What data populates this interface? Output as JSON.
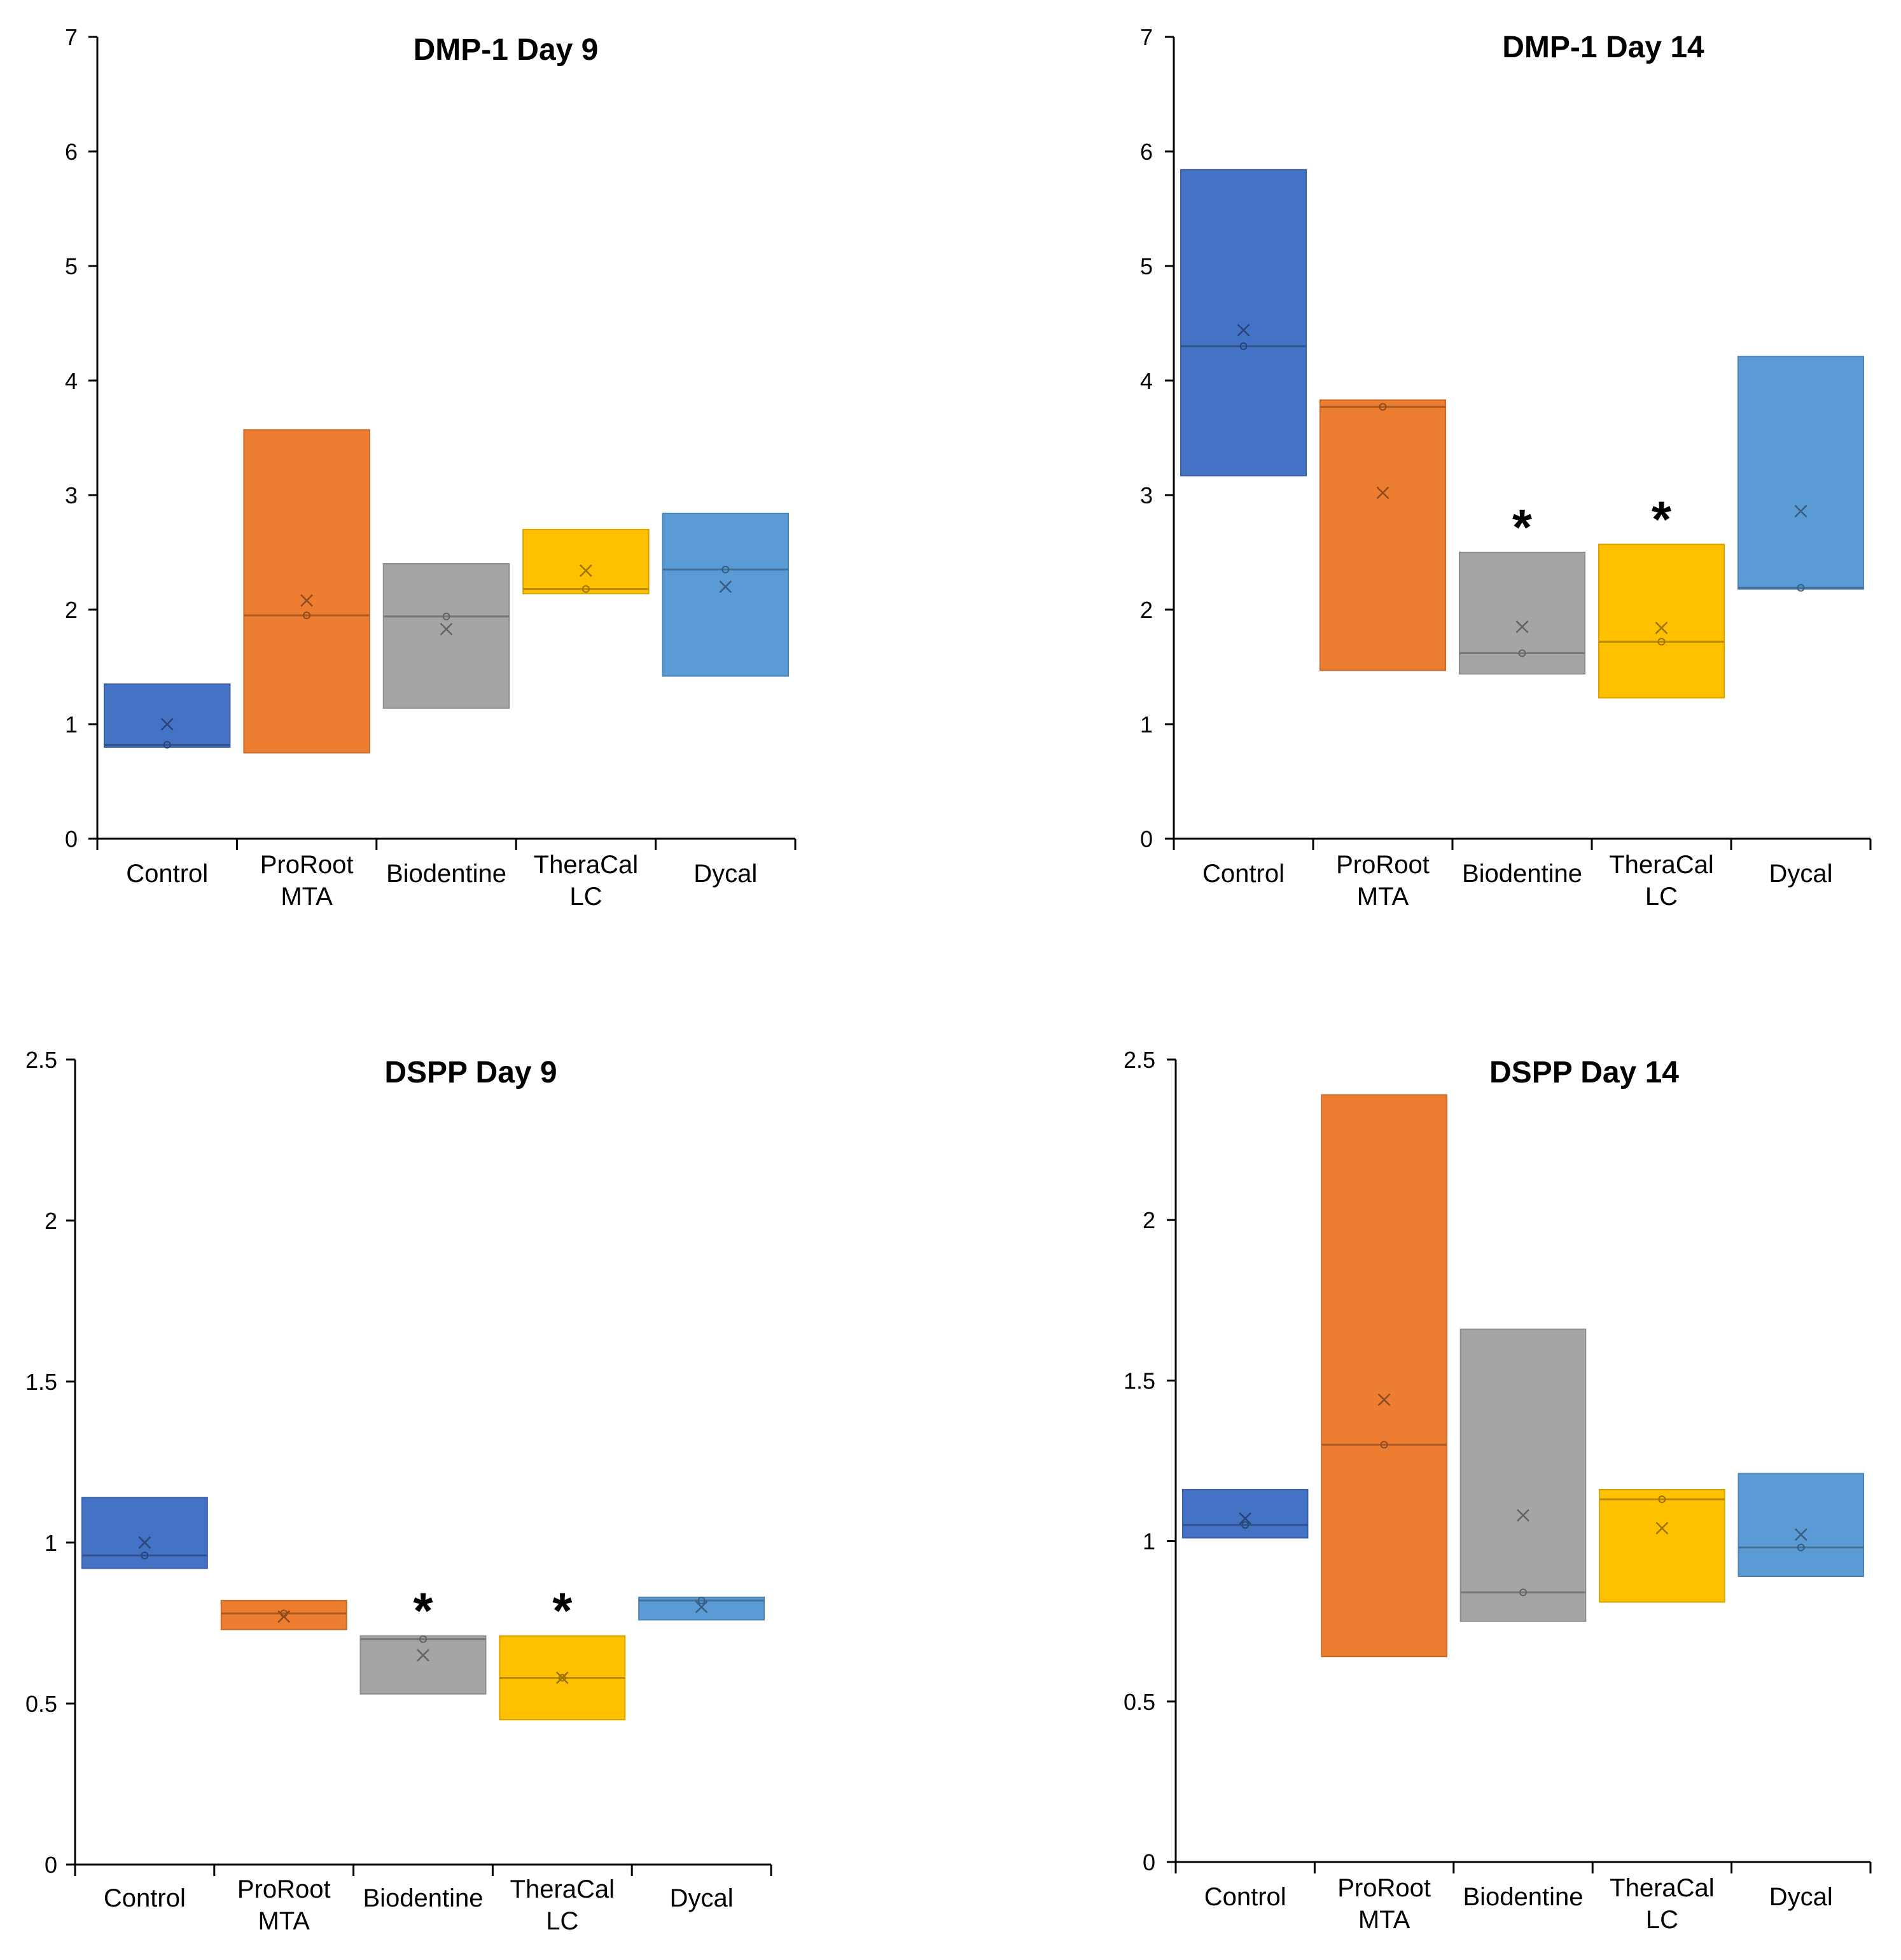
{
  "figure": {
    "colors": {
      "Control": "#4472C4",
      "ProRoot MTA": "#ED7D31",
      "Biodentine": "#A5A5A5",
      "TheraCal LC": "#FFC000",
      "Dycal": "#5B9BD5"
    }
  },
  "chart_data": [
    {
      "type": "boxplot",
      "title": "DMP-1 Day 9",
      "xlabel": "",
      "ylabel": "",
      "ylim": [
        0,
        7
      ],
      "yticks": [
        "0",
        "1",
        "2",
        "3",
        "4",
        "5",
        "6",
        "7"
      ],
      "categories": [
        {
          "name": "Control",
          "lines": [
            "Control"
          ],
          "q1": 0.8,
          "median": 0.82,
          "q3": 1.35,
          "mean": 1.0,
          "sig": ""
        },
        {
          "name": "ProRoot MTA",
          "lines": [
            "ProRoot",
            "MTA"
          ],
          "q1": 0.75,
          "median": 1.95,
          "q3": 3.57,
          "mean": 2.08,
          "sig": ""
        },
        {
          "name": "Biodentine",
          "lines": [
            "Biodentine"
          ],
          "q1": 1.14,
          "median": 1.94,
          "q3": 2.4,
          "mean": 1.83,
          "sig": ""
        },
        {
          "name": "TheraCal LC",
          "lines": [
            "TheraCal",
            "LC"
          ],
          "q1": 2.14,
          "median": 2.18,
          "q3": 2.7,
          "mean": 2.34,
          "sig": ""
        },
        {
          "name": "Dycal",
          "lines": [
            "Dycal"
          ],
          "q1": 1.42,
          "median": 2.35,
          "q3": 2.84,
          "mean": 2.2,
          "sig": ""
        }
      ]
    },
    {
      "type": "boxplot",
      "title": "DMP-1 Day 14",
      "xlabel": "",
      "ylabel": "",
      "ylim": [
        0,
        7
      ],
      "yticks": [
        "0",
        "1",
        "2",
        "3",
        "4",
        "5",
        "6",
        "7"
      ],
      "categories": [
        {
          "name": "Control",
          "lines": [
            "Control"
          ],
          "q1": 3.17,
          "median": 4.3,
          "q3": 5.84,
          "mean": 4.44,
          "sig": ""
        },
        {
          "name": "ProRoot MTA",
          "lines": [
            "ProRoot",
            "MTA"
          ],
          "q1": 1.47,
          "median": 3.77,
          "q3": 3.83,
          "mean": 3.02,
          "sig": ""
        },
        {
          "name": "Biodentine",
          "lines": [
            "Biodentine"
          ],
          "q1": 1.44,
          "median": 1.62,
          "q3": 2.5,
          "mean": 1.85,
          "sig": "*"
        },
        {
          "name": "TheraCal LC",
          "lines": [
            "TheraCal",
            "LC"
          ],
          "q1": 1.23,
          "median": 1.72,
          "q3": 2.57,
          "mean": 1.84,
          "sig": "*"
        },
        {
          "name": "Dycal",
          "lines": [
            "Dycal"
          ],
          "q1": 2.18,
          "median": 2.19,
          "q3": 4.21,
          "mean": 2.86,
          "sig": ""
        }
      ]
    },
    {
      "type": "boxplot",
      "title": "DSPP Day 9",
      "xlabel": "",
      "ylabel": "",
      "ylim": [
        0,
        2.5
      ],
      "yticks": [
        "0",
        "0.5",
        "1",
        "1.5",
        "2",
        "2.5"
      ],
      "categories": [
        {
          "name": "Control",
          "lines": [
            "Control"
          ],
          "q1": 0.92,
          "median": 0.96,
          "q3": 1.14,
          "mean": 1.0,
          "sig": ""
        },
        {
          "name": "ProRoot MTA",
          "lines": [
            "ProRoot",
            "MTA"
          ],
          "q1": 0.73,
          "median": 0.78,
          "q3": 0.82,
          "mean": 0.77,
          "sig": ""
        },
        {
          "name": "Biodentine",
          "lines": [
            "Biodentine"
          ],
          "q1": 0.53,
          "median": 0.7,
          "q3": 0.71,
          "mean": 0.65,
          "sig": "*"
        },
        {
          "name": "TheraCal LC",
          "lines": [
            "TheraCal",
            "LC"
          ],
          "q1": 0.45,
          "median": 0.58,
          "q3": 0.71,
          "mean": 0.58,
          "sig": "*"
        },
        {
          "name": "Dycal",
          "lines": [
            "Dycal"
          ],
          "q1": 0.76,
          "median": 0.82,
          "q3": 0.83,
          "mean": 0.8,
          "sig": ""
        }
      ]
    },
    {
      "type": "boxplot",
      "title": "DSPP Day 14",
      "xlabel": "",
      "ylabel": "",
      "ylim": [
        0,
        2.5
      ],
      "yticks": [
        "0",
        "0.5",
        "1",
        "1.5",
        "2",
        "2.5"
      ],
      "categories": [
        {
          "name": "Control",
          "lines": [
            "Control"
          ],
          "q1": 1.01,
          "median": 1.05,
          "q3": 1.16,
          "mean": 1.07,
          "sig": ""
        },
        {
          "name": "ProRoot MTA",
          "lines": [
            "ProRoot",
            "MTA"
          ],
          "q1": 0.64,
          "median": 1.3,
          "q3": 2.39,
          "mean": 1.44,
          "sig": ""
        },
        {
          "name": "Biodentine",
          "lines": [
            "Biodentine"
          ],
          "q1": 0.75,
          "median": 0.84,
          "q3": 1.66,
          "mean": 1.08,
          "sig": ""
        },
        {
          "name": "TheraCal LC",
          "lines": [
            "TheraCal",
            "LC"
          ],
          "q1": 0.81,
          "median": 1.13,
          "q3": 1.16,
          "mean": 1.04,
          "sig": ""
        },
        {
          "name": "Dycal",
          "lines": [
            "Dycal"
          ],
          "q1": 0.89,
          "median": 0.98,
          "q3": 1.21,
          "mean": 1.02,
          "sig": ""
        }
      ]
    }
  ]
}
